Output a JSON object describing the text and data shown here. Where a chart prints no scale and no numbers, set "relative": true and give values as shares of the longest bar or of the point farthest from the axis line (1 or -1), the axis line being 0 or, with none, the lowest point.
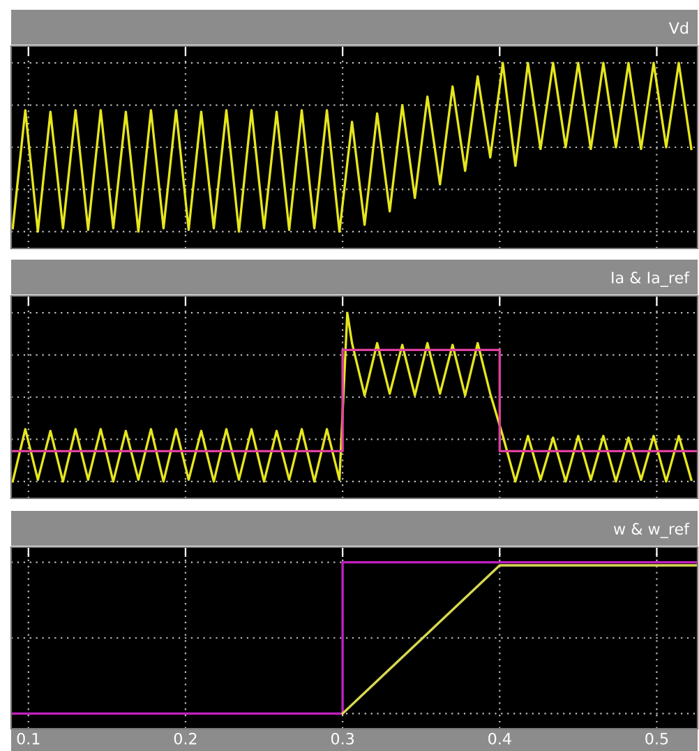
{
  "chart_data": [
    {
      "type": "line",
      "title": "Vd",
      "relative": true,
      "grid": true,
      "tick_labels": false,
      "marker": "none",
      "line_style": "solid",
      "xlim": [
        0.089,
        0.526
      ],
      "xticks": [
        0.1,
        0.2,
        0.3,
        0.4,
        0.5
      ],
      "series": [
        {
          "color": "#e6e61e",
          "x": [
            0.09,
            0.098,
            0.106,
            0.114,
            0.122,
            0.13,
            0.138,
            0.146,
            0.154,
            0.162,
            0.17,
            0.178,
            0.186,
            0.194,
            0.202,
            0.21,
            0.218,
            0.226,
            0.234,
            0.242,
            0.25,
            0.258,
            0.266,
            0.274,
            0.282,
            0.29,
            0.298,
            0.306,
            0.314,
            0.322,
            0.33,
            0.338,
            0.346,
            0.354,
            0.362,
            0.37,
            0.378,
            0.386,
            0.394,
            0.402,
            0.41,
            0.418,
            0.426,
            0.434,
            0.442,
            0.45,
            0.458,
            0.466,
            0.474,
            0.482,
            0.49,
            0.498,
            0.506,
            0.514,
            0.522
          ],
          "values": [
            0.02,
            0.72,
            0.0,
            0.71,
            0.02,
            0.72,
            0.01,
            0.72,
            0.02,
            0.71,
            0.0,
            0.72,
            0.02,
            0.72,
            0.01,
            0.71,
            0.02,
            0.72,
            0.0,
            0.72,
            0.02,
            0.71,
            0.01,
            0.72,
            0.02,
            0.72,
            0.0,
            0.65,
            0.04,
            0.7,
            0.12,
            0.75,
            0.2,
            0.8,
            0.28,
            0.86,
            0.36,
            0.92,
            0.44,
            1.0,
            0.39,
            1.0,
            0.49,
            1.0,
            0.5,
            1.0,
            0.49,
            1.0,
            0.5,
            1.0,
            0.49,
            1.0,
            0.5,
            1.0,
            0.49
          ]
        }
      ]
    },
    {
      "type": "line",
      "title": "Ia & Ia_ref",
      "relative": true,
      "grid": true,
      "tick_labels": false,
      "marker": "none",
      "line_style": "solid",
      "xlim": [
        0.089,
        0.526
      ],
      "xticks": [
        0.1,
        0.2,
        0.3,
        0.4,
        0.5
      ],
      "series": [
        {
          "color": "#e6e61e",
          "x": [
            0.09,
            0.098,
            0.106,
            0.114,
            0.122,
            0.13,
            0.138,
            0.146,
            0.154,
            0.162,
            0.17,
            0.178,
            0.186,
            0.194,
            0.202,
            0.21,
            0.218,
            0.226,
            0.234,
            0.242,
            0.25,
            0.258,
            0.266,
            0.274,
            0.282,
            0.29,
            0.298,
            0.303,
            0.306,
            0.314,
            0.322,
            0.33,
            0.338,
            0.346,
            0.354,
            0.362,
            0.37,
            0.378,
            0.386,
            0.394,
            0.402,
            0.41,
            0.418,
            0.426,
            0.434,
            0.442,
            0.45,
            0.458,
            0.466,
            0.474,
            0.482,
            0.49,
            0.498,
            0.506,
            0.514,
            0.522
          ],
          "values": [
            0.0,
            0.31,
            0.01,
            0.3,
            0.0,
            0.31,
            0.01,
            0.31,
            0.0,
            0.3,
            0.01,
            0.31,
            0.0,
            0.31,
            0.01,
            0.3,
            0.0,
            0.31,
            0.01,
            0.31,
            0.0,
            0.3,
            0.01,
            0.31,
            0.0,
            0.31,
            0.01,
            1.0,
            0.82,
            0.51,
            0.82,
            0.52,
            0.81,
            0.51,
            0.82,
            0.52,
            0.81,
            0.51,
            0.82,
            0.52,
            0.27,
            0.0,
            0.27,
            0.01,
            0.26,
            0.0,
            0.27,
            0.01,
            0.27,
            0.0,
            0.26,
            0.01,
            0.27,
            0.0,
            0.27,
            0.01
          ]
        },
        {
          "color": "#e040a0",
          "x": [
            0.089,
            0.3,
            0.3,
            0.4,
            0.4,
            0.526
          ],
          "values": [
            0.18,
            0.18,
            0.78,
            0.78,
            0.18,
            0.18
          ]
        }
      ]
    },
    {
      "type": "line",
      "title": "w & w_ref",
      "relative": true,
      "grid": true,
      "tick_labels": "x",
      "marker": "none",
      "line_style": "solid",
      "xlim": [
        0.089,
        0.526
      ],
      "xticks": [
        0.1,
        0.2,
        0.3,
        0.4,
        0.5
      ],
      "series": [
        {
          "color": "#c020c0",
          "x": [
            0.089,
            0.3,
            0.3,
            0.526
          ],
          "values": [
            0,
            0,
            1,
            1
          ]
        },
        {
          "color": "#d8d850",
          "x": [
            0.3,
            0.4,
            0.526
          ],
          "values": [
            0,
            0.98,
            0.98
          ]
        }
      ]
    }
  ]
}
